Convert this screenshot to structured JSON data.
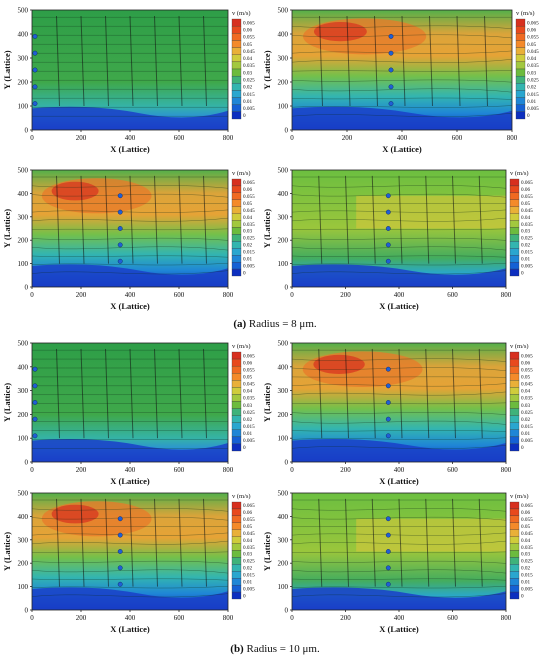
{
  "colorbar": {
    "title": "v (m/s)",
    "levels": [
      "0.065",
      "0.06",
      "0.055",
      "0.05",
      "0.045",
      "0.04",
      "0.035",
      "0.03",
      "0.025",
      "0.02",
      "0.015",
      "0.01",
      "0.005",
      "0"
    ],
    "colors": [
      "#d7301f",
      "#e8491d",
      "#f06a22",
      "#f48a2a",
      "#e9b038",
      "#cfcc3c",
      "#a2c83f",
      "#6cbb3e",
      "#3fb27a",
      "#33b5b0",
      "#2aa6cf",
      "#1f86d6",
      "#1560d4",
      "#0d2fbf"
    ]
  },
  "captions": {
    "a_label": "(a)",
    "a_text": "Radius = 8 μm.",
    "b_label": "(b)",
    "b_text": "Radius = 10 μm."
  },
  "chart_data": [
    {
      "type": "heatmap",
      "panel": "a1",
      "xlabel": "X (Lattice)",
      "ylabel": "Y (Lattice)",
      "xlim": [
        0,
        800
      ],
      "ylim": [
        0,
        500
      ],
      "xticks": [
        0,
        200,
        400,
        600,
        800
      ],
      "yticks": [
        0,
        100,
        200,
        300,
        400,
        500
      ],
      "colorbar_label": "v (m/s)",
      "colorbar_range": [
        0,
        0.065
      ]
    },
    {
      "type": "heatmap",
      "panel": "a2",
      "xlabel": "X (Lattice)",
      "ylabel": "Y (Lattice)",
      "xlim": [
        0,
        800
      ],
      "ylim": [
        0,
        500
      ],
      "xticks": [
        0,
        200,
        400,
        600,
        800
      ],
      "yticks": [
        0,
        100,
        200,
        300,
        400,
        500
      ],
      "colorbar_label": "v (m/s)",
      "colorbar_range": [
        0,
        0.065
      ]
    },
    {
      "type": "heatmap",
      "panel": "a3",
      "xlabel": "X (Lattice)",
      "ylabel": "Y (Lattice)",
      "xlim": [
        0,
        800
      ],
      "ylim": [
        0,
        500
      ],
      "xticks": [
        0,
        200,
        400,
        600,
        800
      ],
      "yticks": [
        0,
        100,
        200,
        300,
        400,
        500
      ],
      "colorbar_label": "v (m/s)",
      "colorbar_range": [
        0,
        0.065
      ]
    },
    {
      "type": "heatmap",
      "panel": "a4",
      "xlabel": "X (Lattice)",
      "ylabel": "Y (Lattice)",
      "xlim": [
        0,
        800
      ],
      "ylim": [
        0,
        500
      ],
      "xticks": [
        0,
        200,
        400,
        600,
        800
      ],
      "yticks": [
        0,
        100,
        200,
        300,
        400,
        500
      ],
      "colorbar_label": "v (m/s)",
      "colorbar_range": [
        0,
        0.065
      ]
    },
    {
      "type": "heatmap",
      "panel": "b1",
      "xlabel": "X (Lattice)",
      "ylabel": "Y (Lattice)",
      "xlim": [
        0,
        800
      ],
      "ylim": [
        0,
        500
      ],
      "xticks": [
        0,
        200,
        400,
        600,
        800
      ],
      "yticks": [
        0,
        100,
        200,
        300,
        400,
        500
      ],
      "colorbar_label": "v (m/s)",
      "colorbar_range": [
        0,
        0.065
      ]
    },
    {
      "type": "heatmap",
      "panel": "b2",
      "xlabel": "X (Lattice)",
      "ylabel": "Y (Lattice)",
      "xlim": [
        0,
        800
      ],
      "ylim": [
        0,
        500
      ],
      "xticks": [
        0,
        200,
        400,
        600,
        800
      ],
      "yticks": [
        0,
        100,
        200,
        300,
        400,
        500
      ],
      "colorbar_label": "v (m/s)",
      "colorbar_range": [
        0,
        0.065
      ]
    },
    {
      "type": "heatmap",
      "panel": "b3",
      "xlabel": "X (Lattice)",
      "ylabel": "Y (Lattice)",
      "xlim": [
        0,
        800
      ],
      "ylim": [
        0,
        500
      ],
      "xticks": [
        0,
        200,
        400,
        600,
        800
      ],
      "yticks": [
        0,
        100,
        200,
        300,
        400,
        500
      ],
      "colorbar_label": "v (m/s)",
      "colorbar_range": [
        0,
        0.065
      ]
    },
    {
      "type": "heatmap",
      "panel": "b4",
      "xlabel": "X (Lattice)",
      "ylabel": "Y (Lattice)",
      "xlim": [
        0,
        800
      ],
      "ylim": [
        0,
        500
      ],
      "xticks": [
        0,
        200,
        400,
        600,
        800
      ],
      "yticks": [
        0,
        100,
        200,
        300,
        400,
        500
      ],
      "colorbar_label": "v (m/s)",
      "colorbar_range": [
        0,
        0.065
      ]
    }
  ]
}
